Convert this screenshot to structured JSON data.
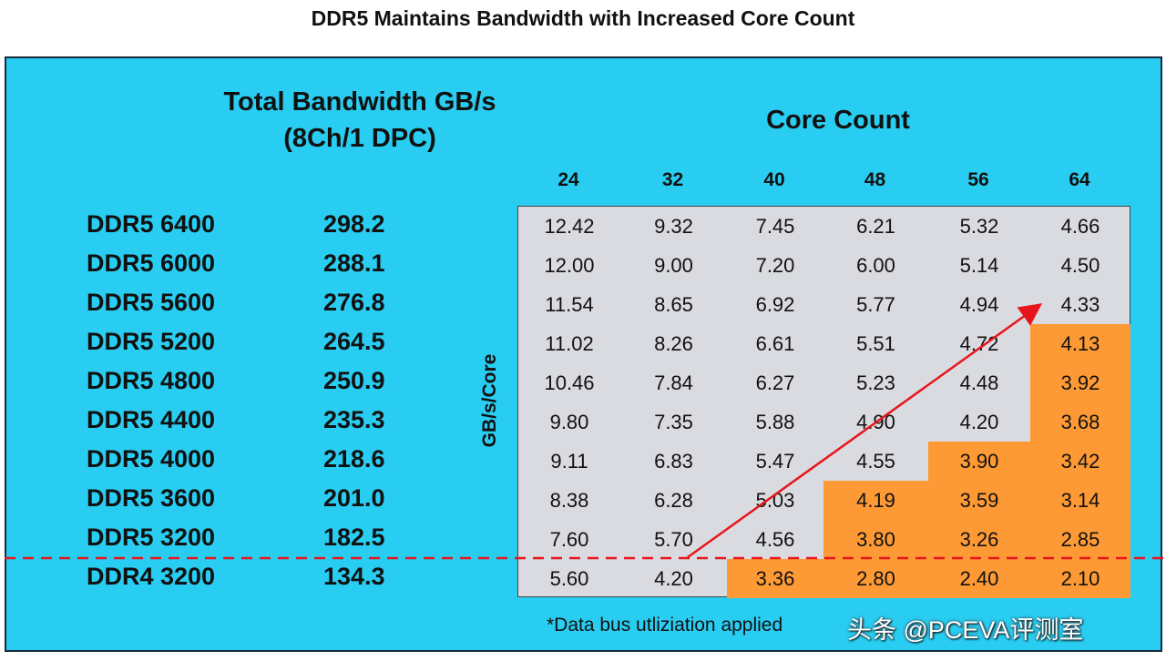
{
  "title": "DDR5 Maintains Bandwidth with Increased Core Count",
  "left_header": {
    "line1": "Total Bandwidth GB/s",
    "line2": "(8Ch/1 DPC)"
  },
  "core_header": "Core Count",
  "y_label": "GB/s/Core",
  "footnote": "*Data bus utliziation applied",
  "watermark": "头条 @PCEVA评测室",
  "colors": {
    "background": "#29cdf1",
    "cell": "#dadbe0",
    "highlight": "#fd9a35",
    "arrow": "#e8141c",
    "dashed_line": "#e8141c"
  },
  "chart_data": {
    "type": "table",
    "title": "DDR5 Maintains Bandwidth with Increased Core Count",
    "columns": [
      "24",
      "32",
      "40",
      "48",
      "56",
      "64"
    ],
    "rows": [
      {
        "memory": "DDR5 6400",
        "bandwidth": "298.2",
        "values": [
          "12.42",
          "9.32",
          "7.45",
          "6.21",
          "5.32",
          "4.66"
        ],
        "highlight": [
          false,
          false,
          false,
          false,
          false,
          false
        ]
      },
      {
        "memory": "DDR5 6000",
        "bandwidth": "288.1",
        "values": [
          "12.00",
          "9.00",
          "7.20",
          "6.00",
          "5.14",
          "4.50"
        ],
        "highlight": [
          false,
          false,
          false,
          false,
          false,
          false
        ]
      },
      {
        "memory": "DDR5 5600",
        "bandwidth": "276.8",
        "values": [
          "11.54",
          "8.65",
          "6.92",
          "5.77",
          "4.94",
          "4.33"
        ],
        "highlight": [
          false,
          false,
          false,
          false,
          false,
          false
        ]
      },
      {
        "memory": "DDR5 5200",
        "bandwidth": "264.5",
        "values": [
          "11.02",
          "8.26",
          "6.61",
          "5.51",
          "4.72",
          "4.13"
        ],
        "highlight": [
          false,
          false,
          false,
          false,
          false,
          true
        ]
      },
      {
        "memory": "DDR5 4800",
        "bandwidth": "250.9",
        "values": [
          "10.46",
          "7.84",
          "6.27",
          "5.23",
          "4.48",
          "3.92"
        ],
        "highlight": [
          false,
          false,
          false,
          false,
          false,
          true
        ]
      },
      {
        "memory": "DDR5 4400",
        "bandwidth": "235.3",
        "values": [
          "9.80",
          "7.35",
          "5.88",
          "4.90",
          "4.20",
          "3.68"
        ],
        "highlight": [
          false,
          false,
          false,
          false,
          false,
          true
        ]
      },
      {
        "memory": "DDR5 4000",
        "bandwidth": "218.6",
        "values": [
          "9.11",
          "6.83",
          "5.47",
          "4.55",
          "3.90",
          "3.42"
        ],
        "highlight": [
          false,
          false,
          false,
          false,
          true,
          true
        ]
      },
      {
        "memory": "DDR5 3600",
        "bandwidth": "201.0",
        "values": [
          "8.38",
          "6.28",
          "5.03",
          "4.19",
          "3.59",
          "3.14"
        ],
        "highlight": [
          false,
          false,
          false,
          true,
          true,
          true
        ]
      },
      {
        "memory": "DDR5 3200",
        "bandwidth": "182.5",
        "values": [
          "7.60",
          "5.70",
          "4.56",
          "3.80",
          "3.26",
          "2.85"
        ],
        "highlight": [
          false,
          false,
          false,
          true,
          true,
          true
        ]
      },
      {
        "memory": "DDR4 3200",
        "bandwidth": "134.3",
        "values": [
          "5.60",
          "4.20",
          "3.36",
          "2.80",
          "2.40",
          "2.10"
        ],
        "highlight": [
          false,
          false,
          true,
          true,
          true,
          true
        ]
      }
    ]
  }
}
